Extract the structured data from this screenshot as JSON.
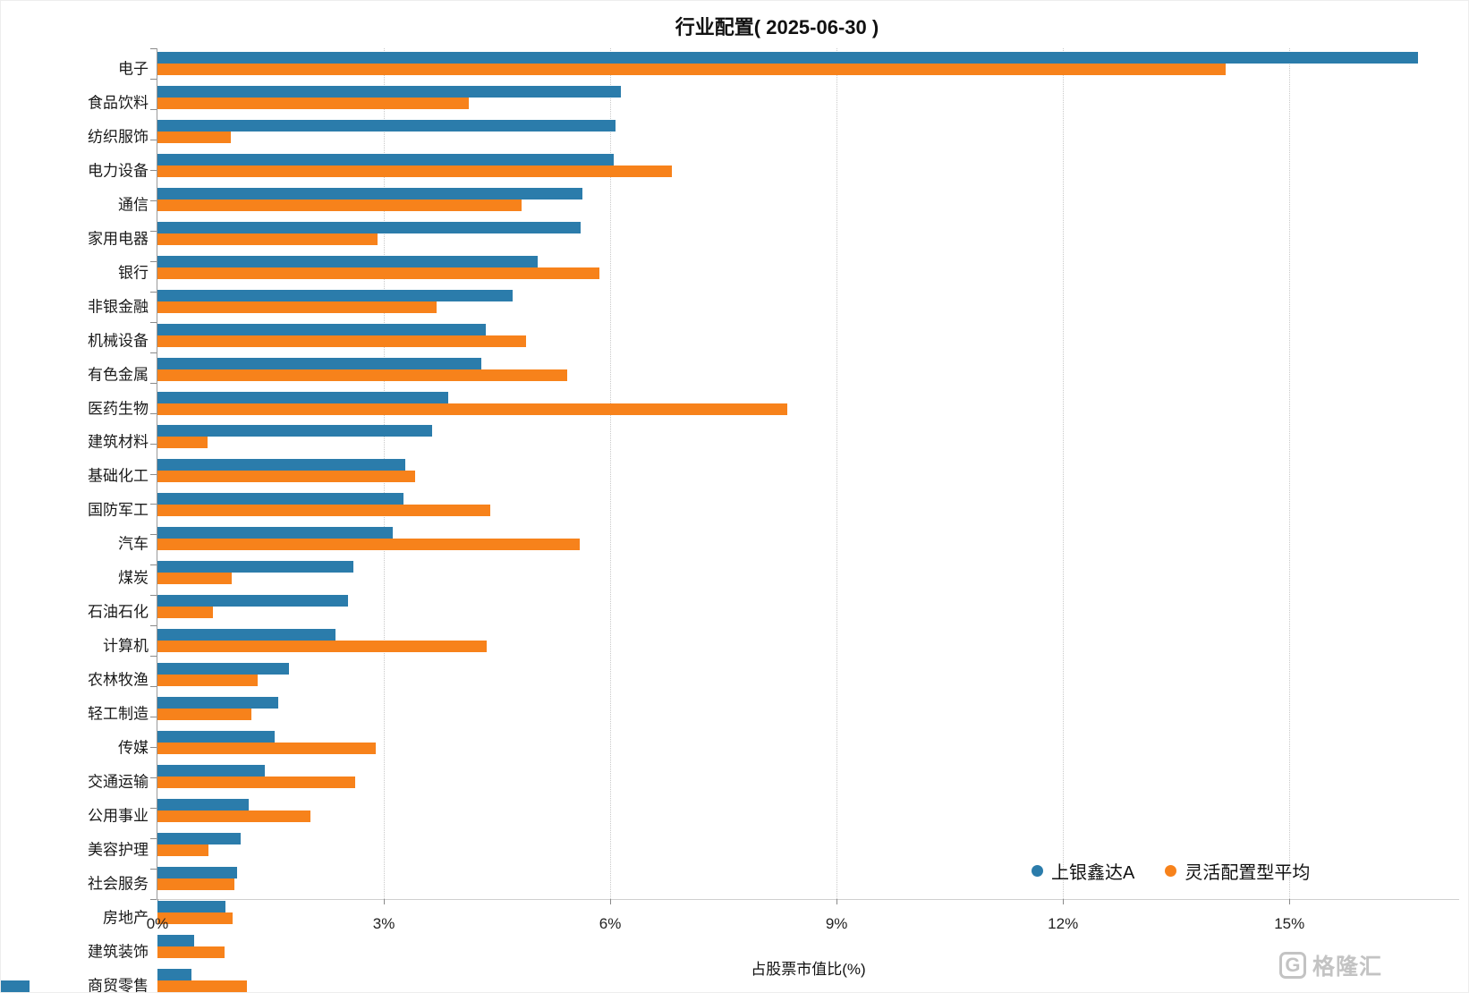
{
  "chart_data": {
    "type": "bar",
    "orientation": "horizontal",
    "title": "行业配置( 2025-06-30 )",
    "xlabel": "占股票市值比(%)",
    "xmax": 17.25,
    "grid": "vertical-dotted",
    "legend_position": "bottom-right",
    "x_ticks": [
      {
        "value": 0,
        "label": "0%"
      },
      {
        "value": 3,
        "label": "3%"
      },
      {
        "value": 6,
        "label": "6%"
      },
      {
        "value": 9,
        "label": "9%"
      },
      {
        "value": 12,
        "label": "12%"
      },
      {
        "value": 15,
        "label": "15%"
      }
    ],
    "categories": [
      "电子",
      "食品饮料",
      "纺织服饰",
      "电力设备",
      "通信",
      "家用电器",
      "银行",
      "非银金融",
      "机械设备",
      "有色金属",
      "医药生物",
      "建筑材料",
      "基础化工",
      "国防军工",
      "汽车",
      "煤炭",
      "石油石化",
      "计算机",
      "农林牧渔",
      "轻工制造",
      "传媒",
      "交通运输",
      "公用事业",
      "美容护理",
      "社会服务",
      "房地产",
      "建筑装饰",
      "商贸零售"
    ],
    "series": [
      {
        "name": "上银鑫达A",
        "color": "#2b7cab",
        "values": [
          16.7,
          6.14,
          6.07,
          6.05,
          5.63,
          5.61,
          5.04,
          4.71,
          4.35,
          4.29,
          3.85,
          3.64,
          3.28,
          3.26,
          3.12,
          2.6,
          2.53,
          2.36,
          1.74,
          1.6,
          1.55,
          1.42,
          1.21,
          1.1,
          1.06,
          0.9,
          0.49,
          0.45
        ]
      },
      {
        "name": "灵活配置型平均",
        "color": "#f7821b",
        "values": [
          14.15,
          4.13,
          0.97,
          6.82,
          4.82,
          2.92,
          5.86,
          3.7,
          4.88,
          5.43,
          8.35,
          0.66,
          3.42,
          4.41,
          5.59,
          0.98,
          0.74,
          4.36,
          1.33,
          1.25,
          2.89,
          2.62,
          2.03,
          0.68,
          1.02,
          1.0,
          0.89,
          1.19
        ]
      }
    ]
  },
  "watermark": {
    "icon_letter": "G",
    "text": "格隆汇"
  }
}
